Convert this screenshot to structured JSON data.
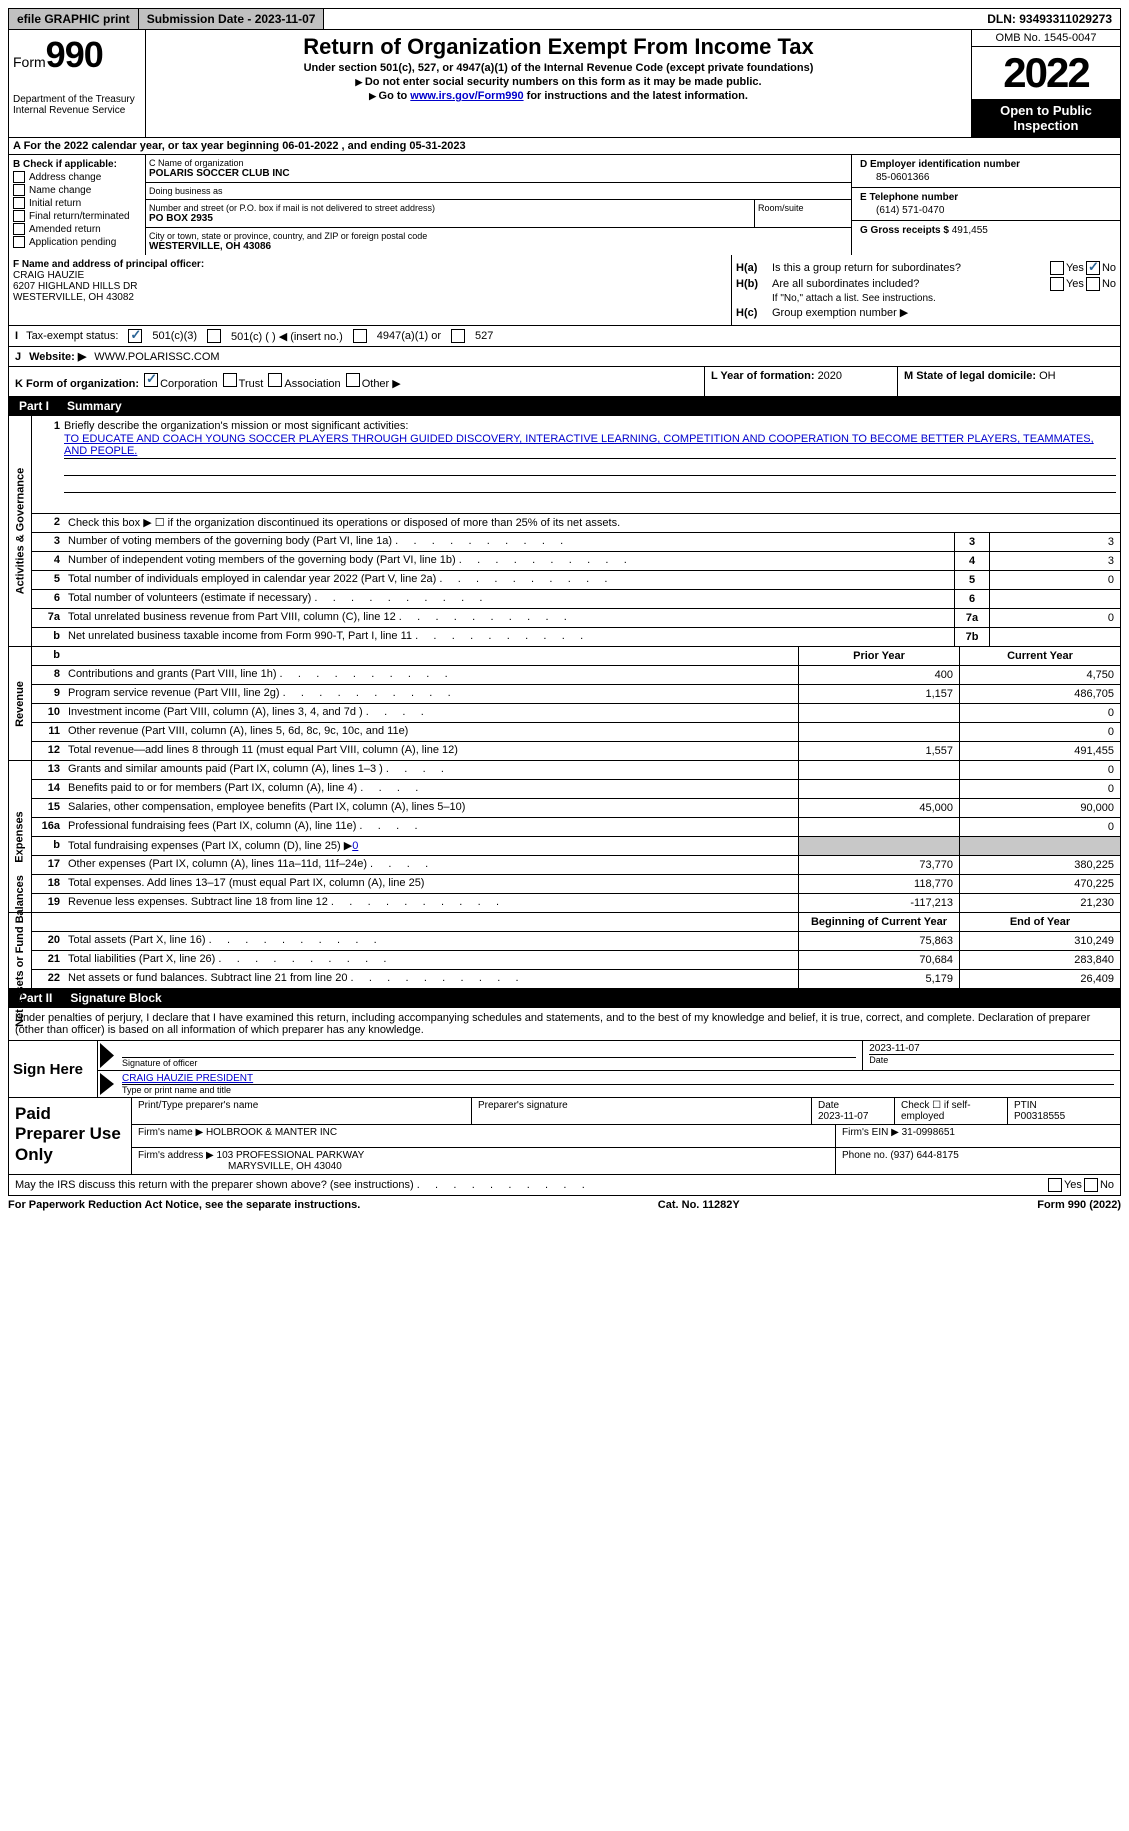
{
  "topbar": {
    "efile": "efile GRAPHIC print",
    "submission_label": "Submission Date - 2023-11-07",
    "dln_label": "DLN: 93493311029273"
  },
  "header": {
    "form_word": "Form",
    "form_number": "990",
    "dept": "Department of the Treasury Internal Revenue Service",
    "title": "Return of Organization Exempt From Income Tax",
    "subtitle": "Under section 501(c), 527, or 4947(a)(1) of the Internal Revenue Code (except private foundations)",
    "note1": "Do not enter social security numbers on this form as it may be made public.",
    "note2_pre": "Go to ",
    "note2_link": "www.irs.gov/Form990",
    "note2_post": " for instructions and the latest information.",
    "omb": "OMB No. 1545-0047",
    "year": "2022",
    "open": "Open to Public Inspection"
  },
  "row_a": "A For the 2022 calendar year, or tax year beginning 06-01-2022    , and ending 05-31-2023",
  "col_b": {
    "title": "B Check if applicable:",
    "opts": [
      "Address change",
      "Name change",
      "Initial return",
      "Final return/terminated",
      "Amended return",
      "Application pending"
    ]
  },
  "col_c": {
    "name_lab": "C Name of organization",
    "name": "POLARIS SOCCER CLUB INC",
    "dba_lab": "Doing business as",
    "dba": "",
    "street_lab": "Number and street (or P.O. box if mail is not delivered to street address)",
    "street": "PO BOX 2935",
    "room_lab": "Room/suite",
    "city_lab": "City or town, state or province, country, and ZIP or foreign postal code",
    "city": "WESTERVILLE, OH  43086"
  },
  "col_d": {
    "ein_lab": "D Employer identification number",
    "ein": "85-0601366",
    "phone_lab": "E Telephone number",
    "phone": "(614) 571-0470",
    "gross_lab": "G Gross receipts $ ",
    "gross": "491,455"
  },
  "f": {
    "lab": "F Name and address of principal officer:",
    "name": "CRAIG HAUZIE",
    "addr1": "6207 HIGHLAND HILLS DR",
    "addr2": "WESTERVILLE, OH  43082"
  },
  "h": {
    "a": "Is this a group return for subordinates?",
    "b": "Are all subordinates included?",
    "b_note": "If \"No,\" attach a list. See instructions.",
    "c": "Group exemption number ▶"
  },
  "i": {
    "label": "Tax-exempt status:",
    "o1": "501(c)(3)",
    "o2": "501(c) (   ) ◀ (insert no.)",
    "o3": "4947(a)(1) or",
    "o4": "527"
  },
  "j": {
    "lab": "Website: ▶",
    "val": "WWW.POLARISSC.COM"
  },
  "k": {
    "lab": "K Form of organization:",
    "o1": "Corporation",
    "o2": "Trust",
    "o3": "Association",
    "o4": "Other ▶"
  },
  "l": {
    "lab": "L Year of formation: ",
    "val": "2020"
  },
  "m": {
    "lab": "M State of legal domicile: ",
    "val": "OH"
  },
  "part1": {
    "num": "Part I",
    "title": "Summary"
  },
  "act_gov": {
    "side": "Activities & Governance",
    "l1_lab": "Briefly describe the organization's mission or most significant activities:",
    "l1_text": "TO EDUCATE AND COACH YOUNG SOCCER PLAYERS THROUGH GUIDED DISCOVERY, INTERACTIVE LEARNING, COMPETITION AND COOPERATION TO BECOME BETTER PLAYERS, TEAMMATES, AND PEOPLE.",
    "l2": "Check this box ▶ ☐  if the organization discontinued its operations or disposed of more than 25% of its net assets.",
    "rows": [
      {
        "n": "3",
        "d": "Number of voting members of the governing body (Part VI, line 1a)",
        "nc": "3",
        "v": "3"
      },
      {
        "n": "4",
        "d": "Number of independent voting members of the governing body (Part VI, line 1b)",
        "nc": "4",
        "v": "3"
      },
      {
        "n": "5",
        "d": "Total number of individuals employed in calendar year 2022 (Part V, line 2a)",
        "nc": "5",
        "v": "0"
      },
      {
        "n": "6",
        "d": "Total number of volunteers (estimate if necessary)",
        "nc": "6",
        "v": ""
      },
      {
        "n": "7a",
        "d": "Total unrelated business revenue from Part VIII, column (C), line 12",
        "nc": "7a",
        "v": "0"
      },
      {
        "n": "b",
        "d": "Net unrelated business taxable income from Form 990-T, Part I, line 11",
        "nc": "7b",
        "v": ""
      }
    ]
  },
  "revenue": {
    "side": "Revenue",
    "hdr_b": "b",
    "hdr_prior": "Prior Year",
    "hdr_curr": "Current Year",
    "rows": [
      {
        "n": "8",
        "d": "Contributions and grants (Part VIII, line 1h)",
        "ds": 1,
        "p": "400",
        "c": "4,750"
      },
      {
        "n": "9",
        "d": "Program service revenue (Part VIII, line 2g)",
        "ds": 1,
        "p": "1,157",
        "c": "486,705"
      },
      {
        "n": "10",
        "d": "Investment income (Part VIII, column (A), lines 3, 4, and 7d )",
        "ds": 2,
        "p": "",
        "c": "0"
      },
      {
        "n": "11",
        "d": "Other revenue (Part VIII, column (A), lines 5, 6d, 8c, 9c, 10c, and 11e)",
        "ds": 0,
        "p": "",
        "c": "0"
      },
      {
        "n": "12",
        "d": "Total revenue—add lines 8 through 11 (must equal Part VIII, column (A), line 12)",
        "ds": 0,
        "p": "1,557",
        "c": "491,455"
      }
    ]
  },
  "expenses": {
    "side": "Expenses",
    "rows": [
      {
        "n": "13",
        "d": "Grants and similar amounts paid (Part IX, column (A), lines 1–3 )",
        "ds": 2,
        "p": "",
        "c": "0"
      },
      {
        "n": "14",
        "d": "Benefits paid to or for members (Part IX, column (A), line 4)",
        "ds": 2,
        "p": "",
        "c": "0"
      },
      {
        "n": "15",
        "d": "Salaries, other compensation, employee benefits (Part IX, column (A), lines 5–10)",
        "ds": 0,
        "p": "45,000",
        "c": "90,000"
      },
      {
        "n": "16a",
        "d": "Professional fundraising fees (Part IX, column (A), line 11e)",
        "ds": 2,
        "p": "",
        "c": "0"
      },
      {
        "n": "b",
        "d": "Total fundraising expenses (Part IX, column (D), line 25) ▶",
        "fund": "0",
        "shade": true
      },
      {
        "n": "17",
        "d": "Other expenses (Part IX, column (A), lines 11a–11d, 11f–24e)",
        "ds": 2,
        "p": "73,770",
        "c": "380,225"
      },
      {
        "n": "18",
        "d": "Total expenses. Add lines 13–17 (must equal Part IX, column (A), line 25)",
        "ds": 0,
        "p": "118,770",
        "c": "470,225"
      },
      {
        "n": "19",
        "d": "Revenue less expenses. Subtract line 18 from line 12",
        "ds": 1,
        "p": "-117,213",
        "c": "21,230"
      }
    ]
  },
  "netassets": {
    "side": "Net Assets or Fund Balances",
    "hdr_prior": "Beginning of Current Year",
    "hdr_curr": "End of Year",
    "rows": [
      {
        "n": "20",
        "d": "Total assets (Part X, line 16)",
        "p": "75,863",
        "c": "310,249"
      },
      {
        "n": "21",
        "d": "Total liabilities (Part X, line 26)",
        "p": "70,684",
        "c": "283,840"
      },
      {
        "n": "22",
        "d": "Net assets or fund balances. Subtract line 21 from line 20",
        "p": "5,179",
        "c": "26,409"
      }
    ]
  },
  "part2": {
    "num": "Part II",
    "title": "Signature Block"
  },
  "sig_decl": "Under penalties of perjury, I declare that I have examined this return, including accompanying schedules and statements, and to the best of my knowledge and belief, it is true, correct, and complete. Declaration of preparer (other than officer) is based on all information of which preparer has any knowledge.",
  "sign_here": "Sign Here",
  "sig": {
    "date": "2023-11-07",
    "sig_lab": "Signature of officer",
    "date_lab": "Date",
    "name": "CRAIG HAUZIE  PRESIDENT",
    "name_lab": "Type or print name and title"
  },
  "paid": "Paid Preparer Use Only",
  "prep": {
    "colh1": "Print/Type preparer's name",
    "colh2": "Preparer's signature",
    "colh3": "Date",
    "date": "2023-11-07",
    "colh4": "Check ☐ if self-employed",
    "colh5": "PTIN",
    "ptin": "P00318555",
    "firm_lab": "Firm's name    ▶ ",
    "firm": "HOLBROOK & MANTER INC",
    "ein_lab": "Firm's EIN ▶ ",
    "ein": "31-0998651",
    "addr_lab": "Firm's address ▶ ",
    "addr1": "103 PROFESSIONAL PARKWAY",
    "addr2": "MARYSVILLE, OH  43040",
    "phone_lab": "Phone no. ",
    "phone": "(937) 644-8175"
  },
  "discuss": "May the IRS discuss this return with the preparer shown above? (see instructions)",
  "footer": {
    "l": "For Paperwork Reduction Act Notice, see the separate instructions.",
    "m": "Cat. No. 11282Y",
    "r": "Form 990 (2022)"
  }
}
